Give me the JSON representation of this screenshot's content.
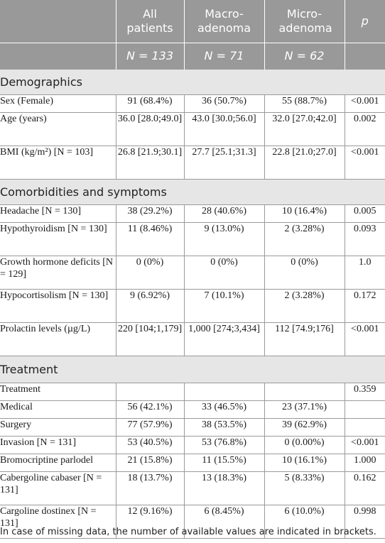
{
  "header": {
    "columns": [
      "",
      "All patients",
      "Macro-adenoma",
      "Micro-adenoma",
      "p"
    ],
    "counts": [
      "",
      "N = 133",
      "N = 71",
      "N = 62",
      ""
    ]
  },
  "sections": [
    {
      "title": "Demographics",
      "rows": [
        {
          "label": "Sex (Female)",
          "all": "91 (68.4%)",
          "macro": "36 (50.7%)",
          "micro": "55 (88.7%)",
          "p": "<0.001"
        },
        {
          "label": "Age (years)",
          "all": "36.0 [28.0;49.0]",
          "macro": "43.0 [30.0;56.0]",
          "micro": "32.0 [27.0;42.0]",
          "p": "0.002"
        },
        {
          "label": "BMI (kg/m²) [N = 103]",
          "all": "26.8 [21.9;30.1]",
          "macro": "27.7 [25.1;31.3]",
          "micro": "22.8 [21.0;27.0]",
          "p": "<0.001"
        }
      ]
    },
    {
      "title": "Comorbidities and symptoms",
      "rows": [
        {
          "label": "Headache [N = 130]",
          "all": "38 (29.2%)",
          "macro": "28 (40.6%)",
          "micro": "10 (16.4%)",
          "p": "0.005"
        },
        {
          "label": "Hypothyroidism [N = 130]",
          "all": "11 (8.46%)",
          "macro": "9 (13.0%)",
          "micro": "2 (3.28%)",
          "p": "0.093"
        },
        {
          "label": "Growth hormone deficits [N = 129]",
          "all": "0 (0%)",
          "macro": "0 (0%)",
          "micro": "0 (0%)",
          "p": "1.0"
        },
        {
          "label": "Hypocortisolism [N = 130]",
          "all": "9 (6.92%)",
          "macro": "7 (10.1%)",
          "micro": "2 (3.28%)",
          "p": "0.172"
        },
        {
          "label": "Prolactin levels (µg/L)",
          "all": "220 [104;1,179]",
          "macro": "1,000 [274;3,434]",
          "micro": "112 [74.9;176]",
          "p": "<0.001"
        }
      ]
    },
    {
      "title": "Treatment",
      "rows": [
        {
          "label": "Treatment",
          "all": "",
          "macro": "",
          "micro": "",
          "p": "0.359"
        },
        {
          "label": "Medical",
          "indent": true,
          "all": "56 (42.1%)",
          "macro": "33 (46.5%)",
          "micro": "23 (37.1%)",
          "p": ""
        },
        {
          "label": "Surgery",
          "indent": true,
          "all": "77 (57.9%)",
          "macro": "38 (53.5%)",
          "micro": "39 (62.9%)",
          "p": ""
        },
        {
          "label": "Invasion [N = 131]",
          "all": "53 (40.5%)",
          "macro": "53 (76.8%)",
          "micro": "0 (0.00%)",
          "p": "<0.001"
        },
        {
          "label": "Bromocriptine parlodel",
          "all": "21 (15.8%)",
          "macro": "11 (15.5%)",
          "micro": "10 (16.1%)",
          "p": "1.000"
        },
        {
          "label": "Cabergoline cabaser [N = 131]",
          "all": "18 (13.7%)",
          "macro": "13 (18.3%)",
          "micro": "5 (8.33%)",
          "p": "0.162"
        },
        {
          "label": "Cargoline dostinex [N = 131]",
          "all": "12 (9.16%)",
          "macro": "6 (8.45%)",
          "micro": "6 (10.0%)",
          "p": "0.998"
        }
      ]
    }
  ],
  "footnote": "In case of missing data, the number of available values are indicated in brackets."
}
